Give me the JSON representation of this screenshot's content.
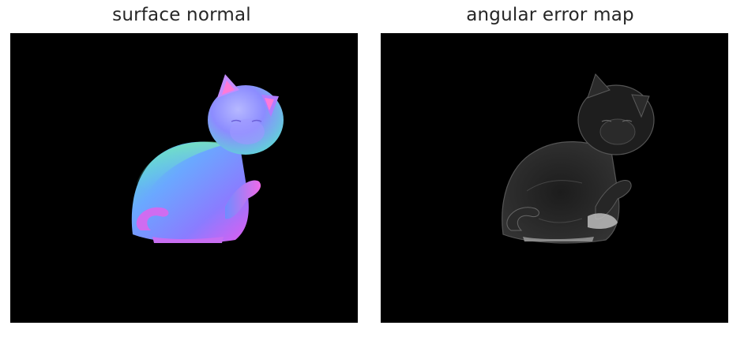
{
  "figure": {
    "panels": [
      {
        "title": "surface normal",
        "subject": "cat figurine",
        "colormap": "normal-rgb"
      },
      {
        "title": "angular error map",
        "subject": "cat figurine",
        "colormap": "gray"
      }
    ],
    "colors": {
      "background": "#000000",
      "title_text": "#262626"
    }
  }
}
